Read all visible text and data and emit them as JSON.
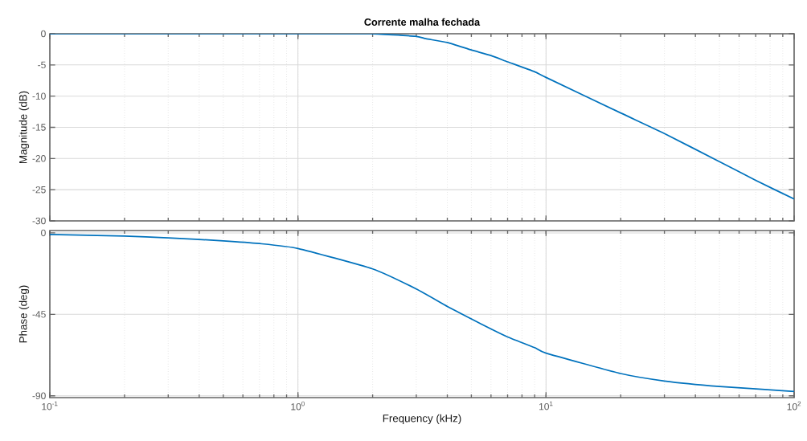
{
  "chart_data": [
    {
      "type": "line",
      "title": "Corrente malha fechada",
      "ylabel": "Magnitude (dB)",
      "log": "x",
      "grid": true,
      "tick_labels": "y",
      "xlim": [
        0.1,
        100
      ],
      "xticks": [
        {
          "value": 0.1,
          "label": null
        },
        {
          "value": 1,
          "label": null
        },
        {
          "value": 10,
          "label": null
        },
        {
          "value": 100,
          "label": null
        }
      ],
      "ylim": [
        -30,
        0
      ],
      "yticks": [
        -30,
        -25,
        -20,
        -15,
        -10,
        -5,
        0
      ],
      "series": [
        {
          "color": "#0072bd",
          "x": [
            0.1,
            0.5,
            1,
            1.5,
            1.95,
            2.97,
            3.28,
            4,
            5,
            6,
            7,
            9,
            10,
            20,
            30,
            50,
            70,
            100
          ],
          "values": [
            0,
            0,
            0,
            0,
            0,
            -0.4,
            -0.8,
            -1.4,
            -2.6,
            -3.5,
            -4.5,
            -6.1,
            -7.0,
            -12.7,
            -16.0,
            -20.5,
            -23.5,
            -26.5
          ]
        }
      ]
    },
    {
      "type": "line",
      "xlabel": "Frequency  (kHz)",
      "ylabel": "Phase (deg)",
      "log": "x",
      "grid": true,
      "xlim": [
        0.1,
        100
      ],
      "xticks": [
        {
          "value": 0.1,
          "label": "10$^{-1}$"
        },
        {
          "value": 1,
          "label": "10$^{0}$"
        },
        {
          "value": 10,
          "label": "10$^{1}$"
        },
        {
          "value": 100,
          "label": "10$^{2}$"
        }
      ],
      "ylim": [
        -91,
        1.3
      ],
      "yticks": [
        -90,
        -45,
        0
      ],
      "series": [
        {
          "color": "#0072bd",
          "x": [
            0.1,
            0.2,
            0.3,
            0.5,
            0.7,
            1,
            2,
            3,
            4,
            5,
            6,
            7,
            9,
            10,
            20,
            30,
            50,
            100
          ],
          "values": [
            -0.9,
            -1.8,
            -2.7,
            -4.4,
            -5.9,
            -8.6,
            -19.9,
            -31,
            -40.6,
            -47.5,
            -53.1,
            -57.5,
            -63.4,
            -66.4,
            -77.7,
            -81.8,
            -84.8,
            -87.6
          ]
        }
      ]
    }
  ]
}
